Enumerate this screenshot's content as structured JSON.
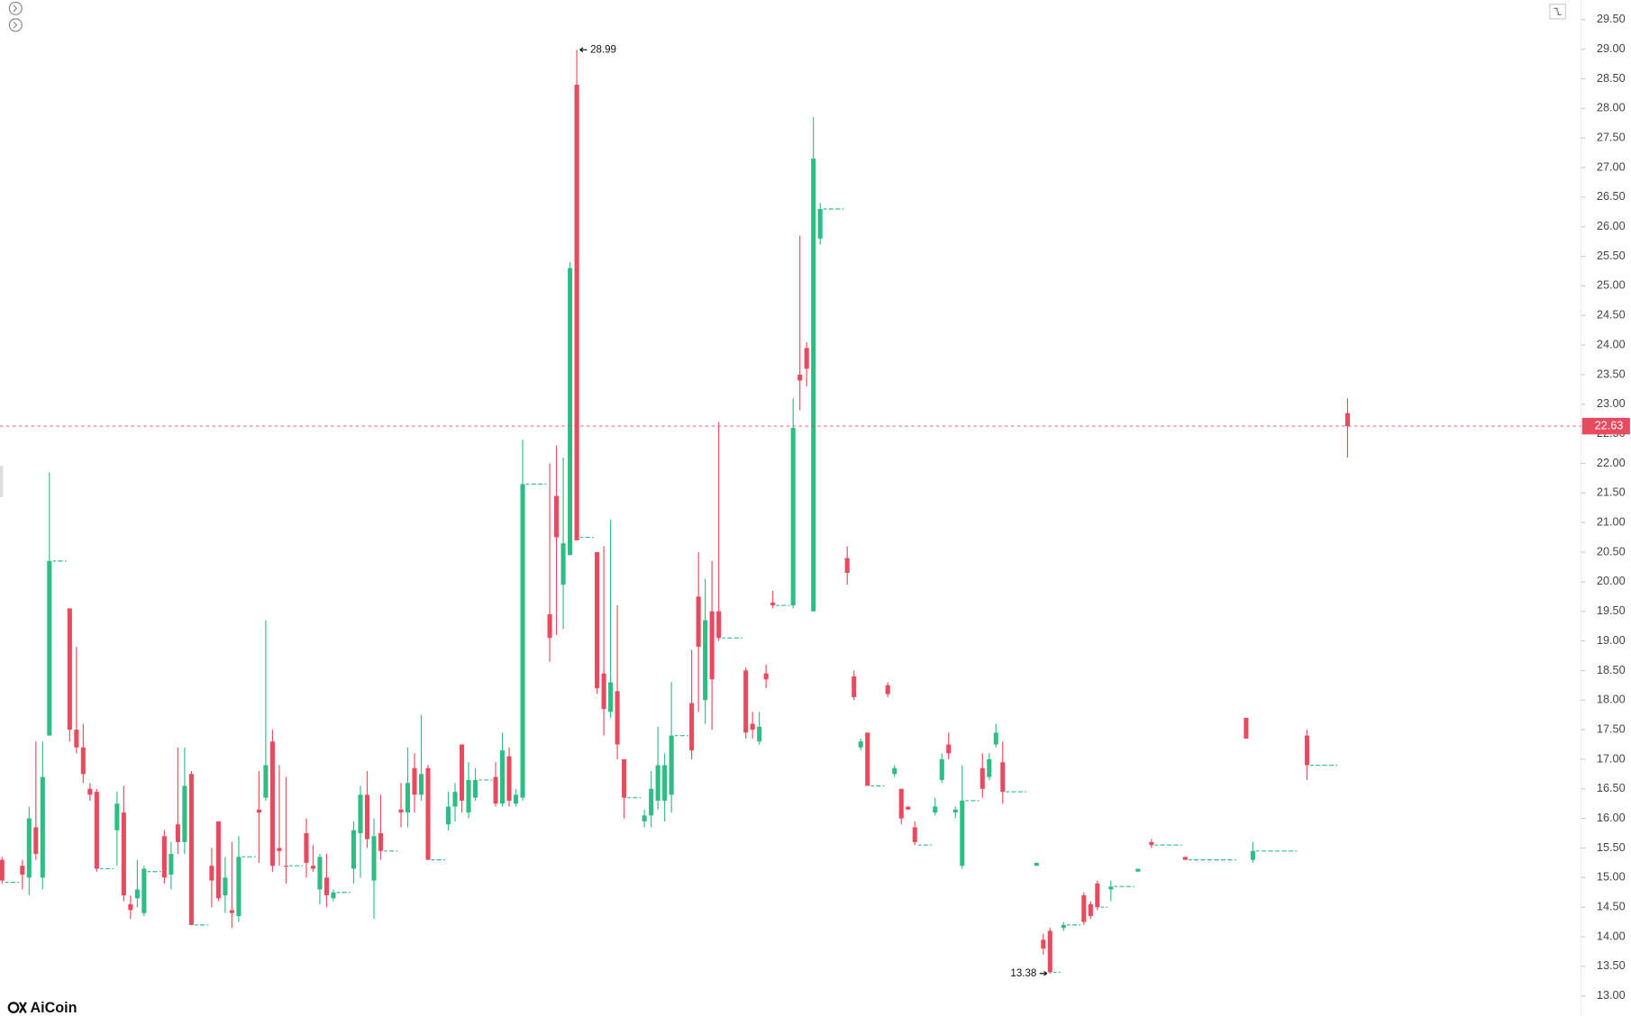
{
  "chart_data": {
    "type": "candlestick",
    "watermark": "AiCoin",
    "up_color": "#2ebd85",
    "down_color": "#e84a5f",
    "ylim": [
      12.68,
      29.83
    ],
    "yticks": [
      {
        "value": 13,
        "label": "13.00"
      },
      {
        "value": 13.5,
        "label": "13.50"
      },
      {
        "value": 14,
        "label": "14.00"
      },
      {
        "value": 14.5,
        "label": "14.50"
      },
      {
        "value": 15,
        "label": "15.00"
      },
      {
        "value": 15.5,
        "label": "15.50"
      },
      {
        "value": 16,
        "label": "16.00"
      },
      {
        "value": 16.5,
        "label": "16.50"
      },
      {
        "value": 17,
        "label": "17.00"
      },
      {
        "value": 17.5,
        "label": "17.50"
      },
      {
        "value": 18,
        "label": "18.00"
      },
      {
        "value": 18.5,
        "label": "18.50"
      },
      {
        "value": 19,
        "label": "19.00"
      },
      {
        "value": 19.5,
        "label": "19.50"
      },
      {
        "value": 20,
        "label": "20.00"
      },
      {
        "value": 20.5,
        "label": "20.50"
      },
      {
        "value": 21,
        "label": "21.00"
      },
      {
        "value": 21.5,
        "label": "21.50"
      },
      {
        "value": 22,
        "label": "22.00"
      },
      {
        "value": 22.5,
        "label": "22.50"
      },
      {
        "value": 23,
        "label": "23.00"
      },
      {
        "value": 23.5,
        "label": "23.50"
      },
      {
        "value": 24,
        "label": "24.00"
      },
      {
        "value": 24.5,
        "label": "24.50"
      },
      {
        "value": 25,
        "label": "25.00"
      },
      {
        "value": 25.5,
        "label": "25.50"
      },
      {
        "value": 26,
        "label": "26.00"
      },
      {
        "value": 26.5,
        "label": "26.50"
      },
      {
        "value": 27,
        "label": "27.00"
      },
      {
        "value": 27.5,
        "label": "27.50"
      },
      {
        "value": 28,
        "label": "28.00"
      },
      {
        "value": 28.5,
        "label": "28.50"
      },
      {
        "value": 29,
        "label": "29.00"
      },
      {
        "value": 29.5,
        "label": "29.50"
      }
    ],
    "last_price": 22.63,
    "high_label": 28.99,
    "low_label": 13.38,
    "candles": [
      [
        15.3,
        15.35,
        14.9,
        14.95
      ],
      [
        14.92,
        14.92,
        14.92,
        14.92
      ],
      [
        14.92,
        14.92,
        14.92,
        14.92
      ],
      [
        15.2,
        15.3,
        14.8,
        15.05
      ],
      [
        15.0,
        16.2,
        14.7,
        16.0
      ],
      [
        15.85,
        17.3,
        15.3,
        15.4
      ],
      [
        15.0,
        17.3,
        14.8,
        16.7
      ],
      [
        17.4,
        21.85,
        17.4,
        20.35
      ],
      [
        20.35,
        20.35,
        20.35,
        20.35
      ],
      [
        20.35,
        20.35,
        20.35,
        20.35
      ],
      [
        19.55,
        19.55,
        17.3,
        17.5
      ],
      [
        17.5,
        18.9,
        17.1,
        17.2
      ],
      [
        17.2,
        17.6,
        16.6,
        16.75
      ],
      [
        16.5,
        16.6,
        16.3,
        16.4
      ],
      [
        16.45,
        16.5,
        15.1,
        15.15
      ],
      [
        15.15,
        15.15,
        15.15,
        15.15
      ],
      [
        15.15,
        15.15,
        15.15,
        15.15
      ],
      [
        15.8,
        16.45,
        15.2,
        16.25
      ],
      [
        16.1,
        16.55,
        14.6,
        14.7
      ],
      [
        14.55,
        14.7,
        14.3,
        14.45
      ],
      [
        14.65,
        15.3,
        14.5,
        14.8
      ],
      [
        14.4,
        15.2,
        14.35,
        15.15
      ],
      [
        15.1,
        15.1,
        15.1,
        15.1
      ],
      [
        15.1,
        15.1,
        15.1,
        15.1
      ],
      [
        15.7,
        15.8,
        14.9,
        15.0
      ],
      [
        15.05,
        15.6,
        14.8,
        15.4
      ],
      [
        15.9,
        17.2,
        15.4,
        15.6
      ],
      [
        15.6,
        17.2,
        15.4,
        16.55
      ],
      [
        16.75,
        16.8,
        14.2,
        14.2
      ],
      [
        14.2,
        14.2,
        14.2,
        14.2
      ],
      [
        14.2,
        14.2,
        14.2,
        14.2
      ],
      [
        15.2,
        15.5,
        14.5,
        14.95
      ],
      [
        15.95,
        15.95,
        14.6,
        14.65
      ],
      [
        14.7,
        15.35,
        14.4,
        15.0
      ],
      [
        14.45,
        15.6,
        14.15,
        14.4
      ],
      [
        14.35,
        15.7,
        14.25,
        15.35
      ],
      [
        15.35,
        15.35,
        15.35,
        15.35
      ],
      [
        15.35,
        15.35,
        15.35,
        15.35
      ],
      [
        16.15,
        16.8,
        15.25,
        16.1
      ],
      [
        16.35,
        19.35,
        16.3,
        16.9
      ],
      [
        17.3,
        17.5,
        15.1,
        15.2
      ],
      [
        15.5,
        16.9,
        15.2,
        15.45
      ],
      [
        15.2,
        16.7,
        14.9,
        15.2
      ],
      [
        15.2,
        15.2,
        15.2,
        15.2
      ],
      [
        15.2,
        15.2,
        15.2,
        15.2
      ],
      [
        15.75,
        16.0,
        15.0,
        15.25
      ],
      [
        15.2,
        15.55,
        15.1,
        15.15
      ],
      [
        14.8,
        15.4,
        14.55,
        15.35
      ],
      [
        15.0,
        15.4,
        14.5,
        14.7
      ],
      [
        14.65,
        14.8,
        14.6,
        14.75
      ],
      [
        14.75,
        14.75,
        14.75,
        14.75
      ],
      [
        14.75,
        14.75,
        14.75,
        14.75
      ],
      [
        15.15,
        15.95,
        14.9,
        15.8
      ],
      [
        15.75,
        16.55,
        15.0,
        16.4
      ],
      [
        16.4,
        16.8,
        15.5,
        15.65
      ],
      [
        14.95,
        16.0,
        14.3,
        15.7
      ],
      [
        15.75,
        16.4,
        15.3,
        15.45
      ],
      [
        15.45,
        15.45,
        15.45,
        15.45
      ],
      [
        15.45,
        15.45,
        15.45,
        15.45
      ],
      [
        16.15,
        16.6,
        15.85,
        16.1
      ],
      [
        16.1,
        17.2,
        15.85,
        16.6
      ],
      [
        16.85,
        17.1,
        16.1,
        16.4
      ],
      [
        16.4,
        17.75,
        16.3,
        16.75
      ],
      [
        16.85,
        16.9,
        15.3,
        15.3
      ],
      [
        15.3,
        15.3,
        15.3,
        15.3
      ],
      [
        15.3,
        15.3,
        15.3,
        15.3
      ],
      [
        15.9,
        16.45,
        15.8,
        16.2
      ],
      [
        16.2,
        16.6,
        15.95,
        16.45
      ],
      [
        17.25,
        17.25,
        16.1,
        16.3
      ],
      [
        16.1,
        16.95,
        16.0,
        16.65
      ],
      [
        16.35,
        16.85,
        16.3,
        16.65
      ],
      [
        16.65,
        16.65,
        16.65,
        16.65
      ],
      [
        16.65,
        16.65,
        16.65,
        16.65
      ],
      [
        16.7,
        16.95,
        16.2,
        16.25
      ],
      [
        16.25,
        17.45,
        16.2,
        17.15
      ],
      [
        17.05,
        17.2,
        16.2,
        16.3
      ],
      [
        16.25,
        16.5,
        16.2,
        16.4
      ],
      [
        16.35,
        22.4,
        16.3,
        21.65
      ],
      [
        21.65,
        21.65,
        21.65,
        21.65
      ],
      [
        21.65,
        21.65,
        21.65,
        21.65
      ],
      [
        21.65,
        21.65,
        21.65,
        21.65
      ],
      [
        19.45,
        22.0,
        18.65,
        19.05
      ],
      [
        21.45,
        22.3,
        19.1,
        20.75
      ],
      [
        19.95,
        22.1,
        19.2,
        20.65
      ],
      [
        20.45,
        25.4,
        20.45,
        25.3
      ],
      [
        28.4,
        28.99,
        20.7,
        20.7
      ],
      [
        20.75,
        20.75,
        20.75,
        20.75
      ],
      [
        20.75,
        20.75,
        20.75,
        20.75
      ],
      [
        20.5,
        20.5,
        18.1,
        18.2
      ],
      [
        18.45,
        20.6,
        17.4,
        17.85
      ],
      [
        17.8,
        21.05,
        17.7,
        18.3
      ],
      [
        18.15,
        19.6,
        17.0,
        17.25
      ],
      [
        17.0,
        17.0,
        16.0,
        16.35
      ],
      [
        16.35,
        16.35,
        16.35,
        16.35
      ],
      [
        16.35,
        16.35,
        16.35,
        16.35
      ],
      [
        15.95,
        16.15,
        15.85,
        16.05
      ],
      [
        16.05,
        16.8,
        15.85,
        16.5
      ],
      [
        16.3,
        17.55,
        16.15,
        16.9
      ],
      [
        16.3,
        17.1,
        15.95,
        16.9
      ],
      [
        16.4,
        18.3,
        16.1,
        17.4
      ],
      [
        17.4,
        17.4,
        17.4,
        17.4
      ],
      [
        17.4,
        17.4,
        17.4,
        17.4
      ],
      [
        17.95,
        18.85,
        17.0,
        17.15
      ],
      [
        19.75,
        20.5,
        17.8,
        18.9
      ],
      [
        18.0,
        20.05,
        17.6,
        19.35
      ],
      [
        19.5,
        20.35,
        17.5,
        18.35
      ],
      [
        19.5,
        22.7,
        19.0,
        19.05
      ],
      [
        19.05,
        19.05,
        19.05,
        19.05
      ],
      [
        19.05,
        19.05,
        19.05,
        19.05
      ],
      [
        19.05,
        19.05,
        19.05,
        19.05
      ],
      [
        18.5,
        18.55,
        17.35,
        17.45
      ],
      [
        17.6,
        17.8,
        17.35,
        17.5
      ],
      [
        17.3,
        17.8,
        17.25,
        17.55
      ],
      [
        18.45,
        18.6,
        18.2,
        18.35
      ],
      [
        19.65,
        19.85,
        19.55,
        19.6
      ],
      [
        19.6,
        19.6,
        19.6,
        19.6
      ],
      [
        19.6,
        19.6,
        19.6,
        19.6
      ],
      [
        19.6,
        23.1,
        19.55,
        22.6
      ],
      [
        23.5,
        25.85,
        22.9,
        23.4
      ],
      [
        23.95,
        24.05,
        23.3,
        23.6
      ],
      [
        19.5,
        27.85,
        19.5,
        27.15
      ],
      [
        25.8,
        26.4,
        25.7,
        26.3
      ],
      [
        26.3,
        26.3,
        26.3,
        26.3
      ],
      [
        26.3,
        26.3,
        26.3,
        26.3
      ],
      [
        26.3,
        26.3,
        26.3,
        26.3
      ],
      [
        20.4,
        20.6,
        19.95,
        20.15
      ],
      [
        18.4,
        18.5,
        18.0,
        18.05
      ],
      [
        17.2,
        17.35,
        17.15,
        17.3
      ],
      [
        17.45,
        17.45,
        16.55,
        16.55
      ],
      [
        16.55,
        16.55,
        16.55,
        16.55
      ],
      [
        16.55,
        16.55,
        16.55,
        16.55
      ],
      [
        18.25,
        18.3,
        18.05,
        18.1
      ],
      [
        16.75,
        16.9,
        16.7,
        16.85
      ],
      [
        16.5,
        16.5,
        15.9,
        16.0
      ],
      [
        16.2,
        16.2,
        16.15,
        16.15
      ],
      [
        15.85,
        15.95,
        15.55,
        15.6
      ],
      [
        15.55,
        15.55,
        15.55,
        15.55
      ],
      [
        15.55,
        15.55,
        15.55,
        15.55
      ],
      [
        16.1,
        16.35,
        16.05,
        16.2
      ],
      [
        16.65,
        17.1,
        16.6,
        17.0
      ],
      [
        17.25,
        17.45,
        17.0,
        17.1
      ],
      [
        16.1,
        16.2,
        16.0,
        16.15
      ],
      [
        15.2,
        16.9,
        15.15,
        16.3
      ],
      [
        16.3,
        16.3,
        16.3,
        16.3
      ],
      [
        16.3,
        16.3,
        16.3,
        16.3
      ],
      [
        16.85,
        17.1,
        16.35,
        16.5
      ],
      [
        16.7,
        17.1,
        16.65,
        17.0
      ],
      [
        17.25,
        17.6,
        17.2,
        17.45
      ],
      [
        16.95,
        17.3,
        16.25,
        16.45
      ],
      [
        16.45,
        16.45,
        16.45,
        16.45
      ],
      [
        16.45,
        16.45,
        16.45,
        16.45
      ],
      [
        16.45,
        16.45,
        16.45,
        16.45
      ],
      null,
      [
        15.2,
        15.25,
        15.2,
        15.25
      ],
      [
        13.95,
        14.05,
        13.7,
        13.8
      ],
      [
        14.1,
        14.15,
        13.38,
        13.4
      ],
      [
        13.4,
        13.4,
        13.4,
        13.4
      ],
      [
        14.15,
        14.25,
        14.1,
        14.2
      ],
      [
        14.2,
        14.2,
        14.2,
        14.2
      ],
      [
        14.2,
        14.2,
        14.2,
        14.2
      ],
      [
        14.7,
        14.75,
        14.2,
        14.25
      ],
      [
        14.55,
        14.6,
        14.3,
        14.35
      ],
      [
        14.9,
        14.95,
        14.45,
        14.5
      ],
      [
        14.5,
        14.5,
        14.5,
        14.5
      ],
      [
        14.8,
        14.95,
        14.6,
        14.85
      ],
      [
        14.85,
        14.85,
        14.85,
        14.85
      ],
      [
        14.85,
        14.85,
        14.85,
        14.85
      ],
      [
        14.85,
        14.85,
        14.85,
        14.85
      ],
      [
        15.1,
        15.15,
        15.1,
        15.15
      ],
      null,
      [
        15.6,
        15.65,
        15.5,
        15.55
      ],
      [
        15.55,
        15.55,
        15.55,
        15.55
      ],
      [
        15.55,
        15.55,
        15.55,
        15.55
      ],
      [
        15.55,
        15.55,
        15.55,
        15.55
      ],
      [
        15.55,
        15.55,
        15.55,
        15.55
      ],
      [
        15.35,
        15.35,
        15.3,
        15.3
      ],
      [
        15.3,
        15.3,
        15.3,
        15.3
      ],
      [
        15.3,
        15.3,
        15.3,
        15.3
      ],
      [
        15.3,
        15.3,
        15.3,
        15.3
      ],
      [
        15.3,
        15.3,
        15.3,
        15.3
      ],
      [
        15.3,
        15.3,
        15.3,
        15.3
      ],
      [
        15.3,
        15.3,
        15.3,
        15.3
      ],
      [
        15.3,
        15.3,
        15.3,
        15.3
      ],
      null,
      [
        17.7,
        17.7,
        17.35,
        17.35
      ],
      [
        15.3,
        15.6,
        15.25,
        15.45
      ],
      [
        15.45,
        15.45,
        15.45,
        15.45
      ],
      [
        15.45,
        15.45,
        15.45,
        15.45
      ],
      [
        15.45,
        15.45,
        15.45,
        15.45
      ],
      [
        15.45,
        15.45,
        15.45,
        15.45
      ],
      [
        15.45,
        15.45,
        15.45,
        15.45
      ],
      [
        15.45,
        15.45,
        15.45,
        15.45
      ],
      null,
      [
        17.4,
        17.5,
        16.65,
        16.9
      ],
      [
        16.9,
        16.9,
        16.9,
        16.9
      ],
      [
        16.9,
        16.9,
        16.9,
        16.9
      ],
      [
        16.9,
        16.9,
        16.9,
        16.9
      ],
      [
        16.9,
        16.9,
        16.9,
        16.9
      ],
      null,
      [
        22.85,
        23.1,
        22.1,
        22.63
      ]
    ]
  }
}
